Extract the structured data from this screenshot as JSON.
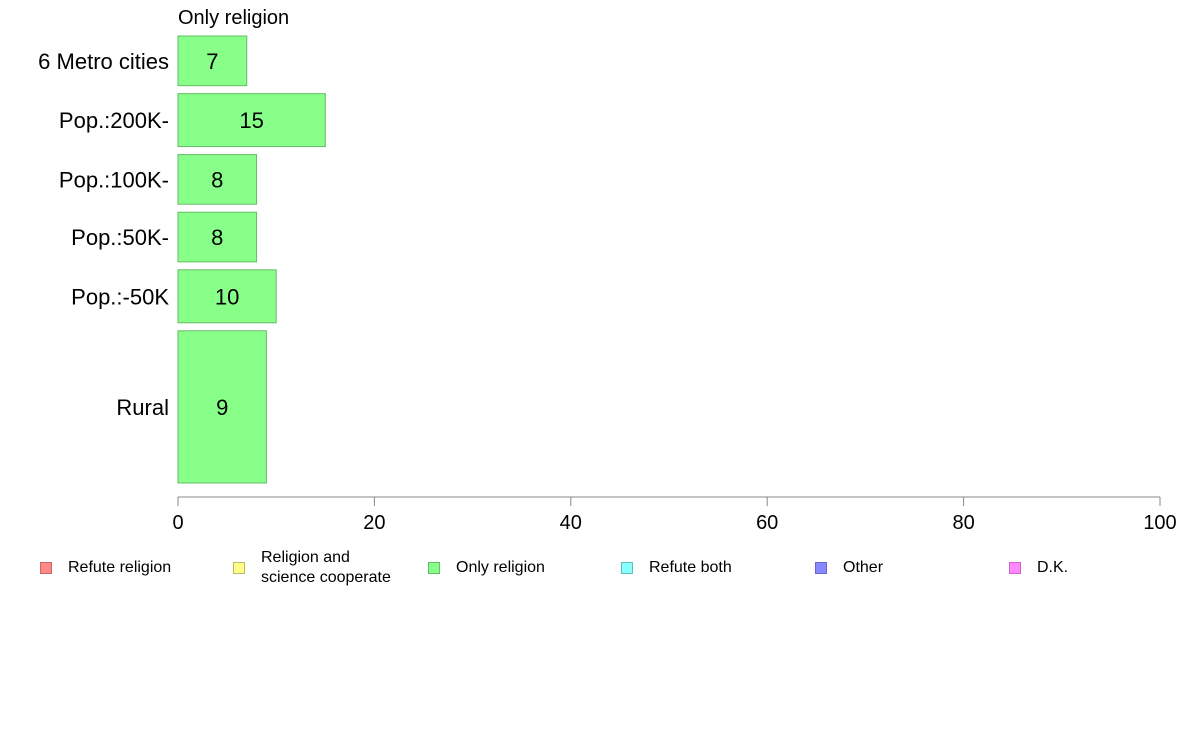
{
  "chart_data": {
    "type": "bar",
    "orientation": "horizontal",
    "title": "Only religion",
    "categories": [
      "6 Metro cities",
      "Pop.:200K-",
      "Pop.:100K-",
      "Pop.:50K-",
      "Pop.:-50K",
      "Rural"
    ],
    "values": [
      7,
      15,
      8,
      8,
      10,
      9
    ],
    "relative_heights": [
      1.5,
      1.6,
      1.5,
      1.5,
      1.6,
      4.6
    ],
    "xlim": [
      0,
      100
    ],
    "xticks": [
      0,
      20,
      40,
      60,
      80,
      100
    ],
    "xlabel": "",
    "ylabel": "",
    "grid": false,
    "bar_color": "#88ff88",
    "bar_edge_color": "#66bb66",
    "legend": {
      "placement": "bottom",
      "entries": [
        {
          "label": "Refute religion",
          "color": "#ff8888",
          "edge": "#cc6666"
        },
        {
          "label": "Religion and\nscience cooperate",
          "color": "#ffff88",
          "edge": "#bbbb66"
        },
        {
          "label": "Only religion",
          "color": "#88ff88",
          "edge": "#66bb66"
        },
        {
          "label": "Refute both",
          "color": "#88ffff",
          "edge": "#66bbbb"
        },
        {
          "label": "Other",
          "color": "#8888ff",
          "edge": "#6666cc"
        },
        {
          "label": "D.K.",
          "color": "#ff88ff",
          "edge": "#cc66cc"
        }
      ]
    }
  }
}
